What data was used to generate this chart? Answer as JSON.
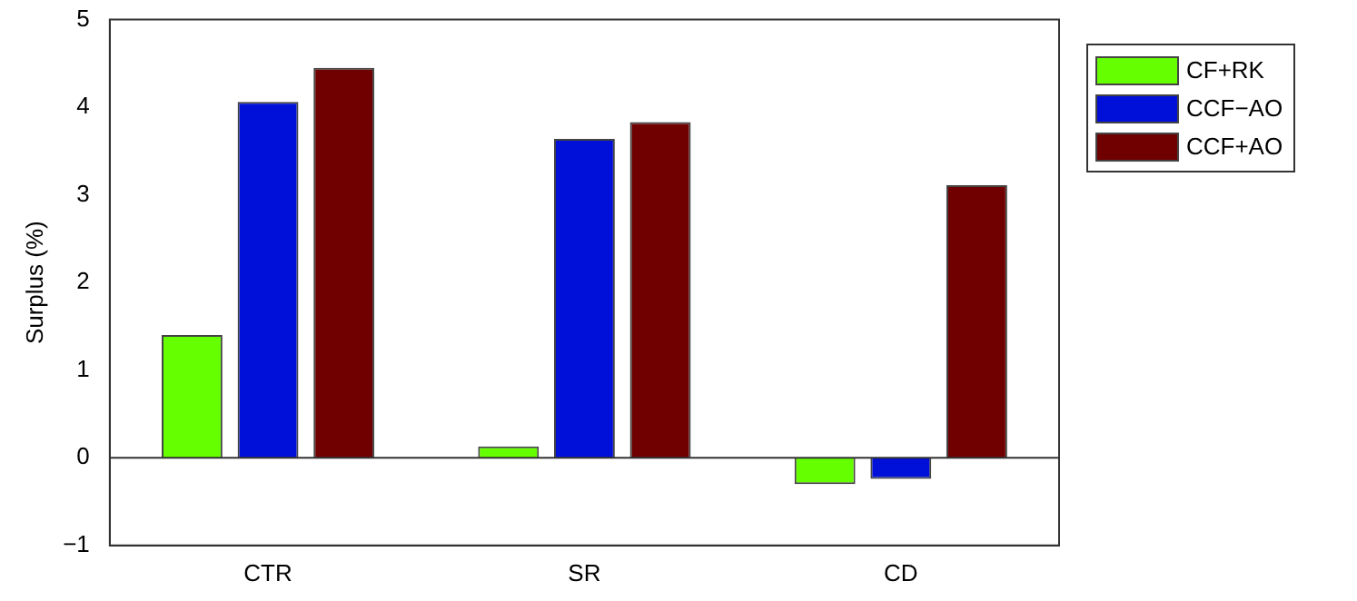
{
  "chart_data": {
    "type": "bar",
    "ylabel": "Surplus (%)",
    "categories": [
      "CTR",
      "SR",
      "CD"
    ],
    "series": [
      {
        "name": "CF+RK",
        "color": "#66ff00",
        "values": [
          1.4,
          0.13,
          -0.3
        ]
      },
      {
        "name": "CCF−AO",
        "color": "#0010d8",
        "values": [
          4.06,
          3.64,
          -0.24
        ]
      },
      {
        "name": "CCF+AO",
        "color": "#700000",
        "values": [
          4.45,
          3.83,
          3.11
        ]
      }
    ],
    "ylim": [
      -1,
      5
    ],
    "yticks": [
      {
        "value": -1,
        "label": "−1"
      },
      0,
      1,
      2,
      3,
      4,
      5
    ],
    "ref_lines": [
      {
        "axis": "y",
        "value": 0
      }
    ],
    "legend": "top right"
  }
}
